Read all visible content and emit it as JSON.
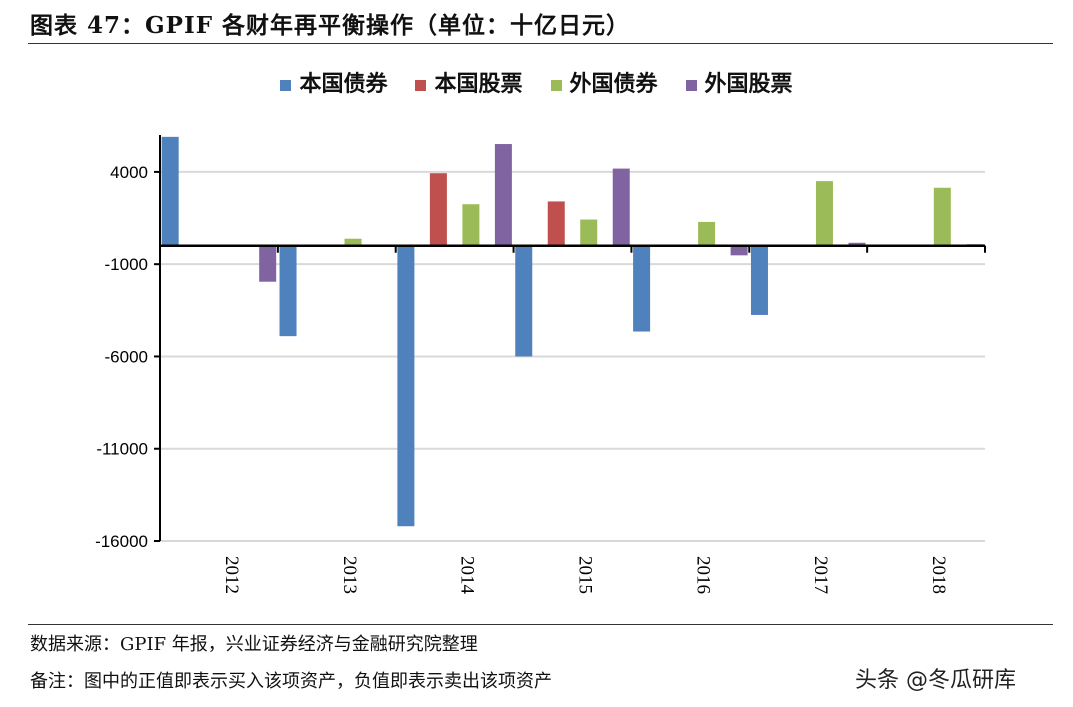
{
  "title": "图表 47：GPIF 各财年再平衡操作（单位：十亿日元）",
  "chart_data": {
    "type": "bar",
    "title": "",
    "xlabel": "",
    "ylabel": "",
    "categories": [
      "2012",
      "2013",
      "2014",
      "2015",
      "2016",
      "2017",
      "2018"
    ],
    "series": [
      {
        "name": "本国债券",
        "color": "#4f81bd",
        "values": [
          5900,
          -4900,
          -15200,
          -6000,
          -4650,
          -3750,
          0
        ]
      },
      {
        "name": "本国股票",
        "color": "#c0504d",
        "values": [
          0,
          50,
          3930,
          2400,
          0,
          0,
          0
        ]
      },
      {
        "name": "外国债券",
        "color": "#9bbb59",
        "values": [
          0,
          380,
          2250,
          1420,
          1290,
          3500,
          3140
        ]
      },
      {
        "name": "外国股票",
        "color": "#8064a2",
        "values": [
          -1950,
          60,
          5510,
          4180,
          -520,
          160,
          80
        ]
      }
    ],
    "yticks": [
      4000,
      -1000,
      -6000,
      -11000,
      -16000
    ],
    "ylim": [
      -16000,
      6000
    ],
    "grid": true,
    "legend": "top"
  },
  "footer": {
    "source": "数据来源：GPIF 年报，兴业证券经济与金融研究院整理",
    "note": "备注：图中的正值即表示买入该项资产，负值即表示卖出该项资产",
    "watermark": "头条 @冬瓜研库"
  }
}
